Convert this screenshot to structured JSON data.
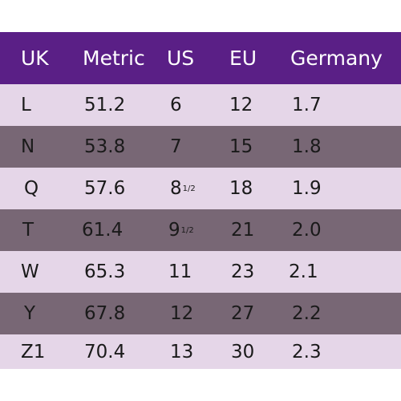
{
  "headers": [
    "UK",
    "Metric",
    "US",
    "EU",
    "Germany"
  ],
  "rows": [
    {
      "uk": "L",
      "metric": "51.2",
      "us": "6",
      "us_frac": "",
      "eu": "12",
      "germany": "1.7"
    },
    {
      "uk": "N",
      "metric": "53.8",
      "us": "7",
      "us_frac": "",
      "eu": "15",
      "germany": "1.8"
    },
    {
      "uk": "Q",
      "metric": "57.6",
      "us": "8",
      "us_frac": "1/2",
      "eu": "18",
      "germany": "1.9"
    },
    {
      "uk": "T",
      "metric": "61.4",
      "us": "9",
      "us_frac": "1/2",
      "eu": "21",
      "germany": "2.0"
    },
    {
      "uk": "W",
      "metric": "65.3",
      "us": "11",
      "us_frac": "",
      "eu": "23",
      "germany": "2.1"
    },
    {
      "uk": "Y",
      "metric": "67.8",
      "us": "12",
      "us_frac": "",
      "eu": "27",
      "germany": "2.2"
    },
    {
      "uk": "Z1",
      "metric": "70.4",
      "us": "13",
      "us_frac": "",
      "eu": "30",
      "germany": "2.3"
    }
  ],
  "colors": {
    "header_bg": "#5a1f86",
    "row_light": "#e5d6e8",
    "row_dark": "#786775"
  }
}
